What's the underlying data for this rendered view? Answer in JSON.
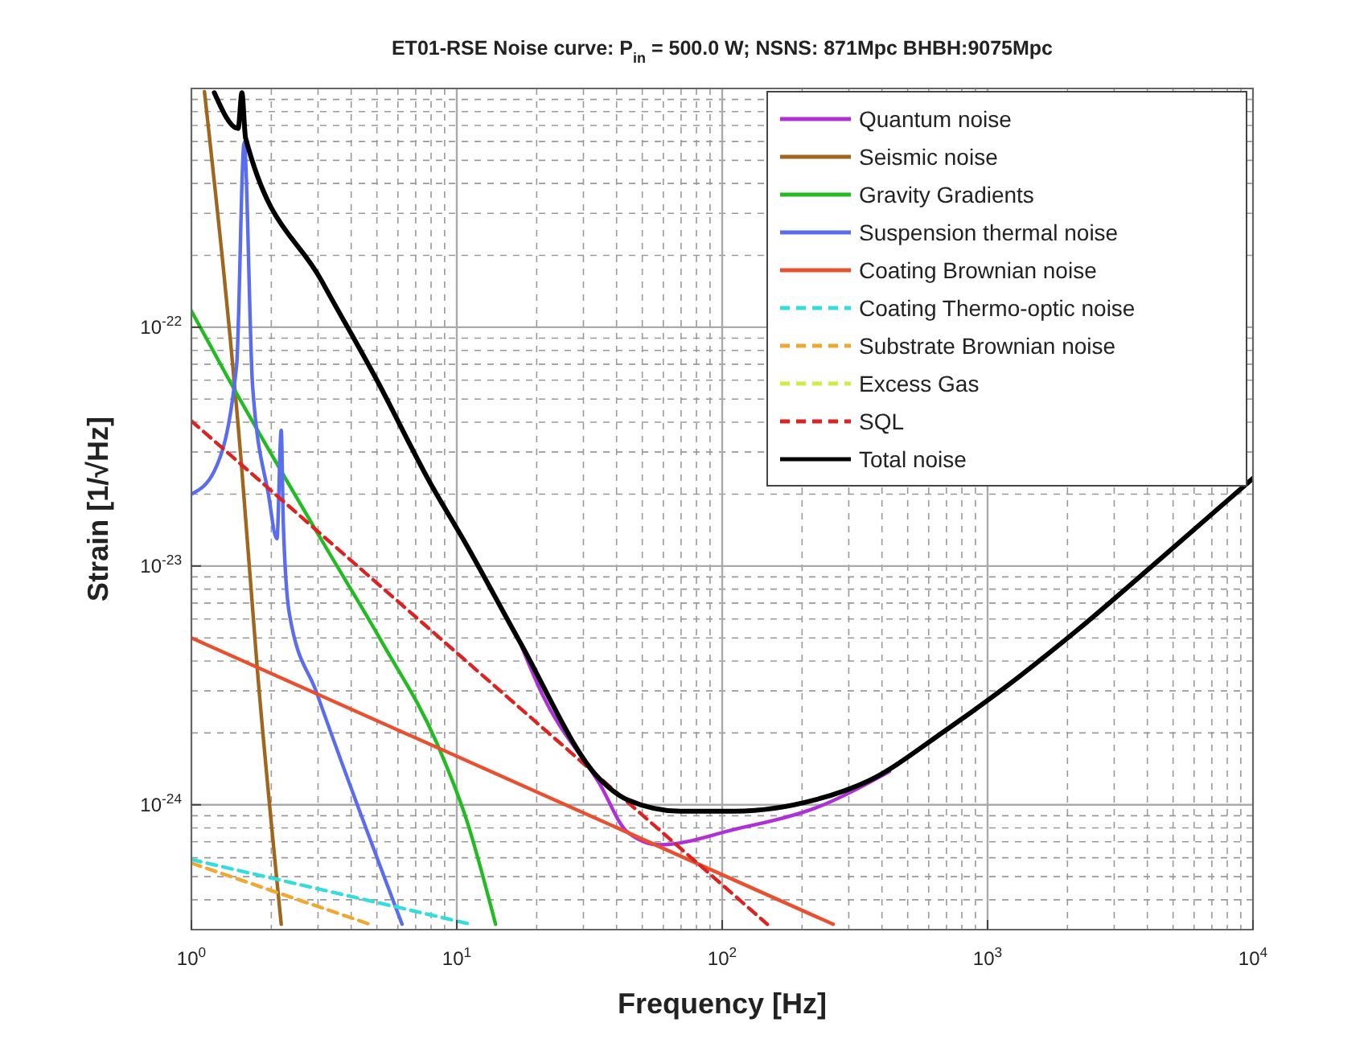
{
  "chart_data": {
    "type": "line",
    "title": "ET01-RSE Noise curve: P$_{in}$ = 500.0 W; NSNS: 871Mpc BHBH:9075Mpc",
    "xlabel": "Frequency [Hz]",
    "ylabel": "Strain [1/√Hz]",
    "log": "xy",
    "grid": true,
    "legend": "top right",
    "xlim": [
      1,
      10000
    ],
    "ylim": [
      3e-25,
      1e-21
    ],
    "xticks": [
      {
        "value": 1,
        "label": "10$^{0}$"
      },
      {
        "value": 10,
        "label": "10$^{1}$"
      },
      {
        "value": 100,
        "label": "10$^{2}$"
      },
      {
        "value": 1000,
        "label": "10$^{3}$"
      },
      {
        "value": 10000,
        "label": "10$^{4}$"
      }
    ],
    "yticks": [
      {
        "value": 1e-24,
        "label": "10$^{-24}$"
      },
      {
        "value": 1e-23,
        "label": "10$^{-23}$"
      },
      {
        "value": 1e-22,
        "label": "10$^{-22}$"
      }
    ],
    "series": [
      {
        "name": "Quantum noise",
        "color": "#b030d8",
        "line_style": "solid",
        "x": [
          17.2,
          20.9,
          34.6,
          43.9,
          58,
          112,
          225,
          427
        ],
        "values": [
          4.86e-24,
          2.93e-24,
          1.22e-24,
          7.7e-25,
          6.8e-25,
          7.9e-25,
          9.7e-25,
          1.38e-24
        ]
      },
      {
        "name": "Seismic noise",
        "color": "#a0661e",
        "line_style": "solid",
        "x": [
          1.12,
          1.54,
          1.77,
          2.18
        ],
        "values": [
          9.7e-22,
          2.75e-23,
          3.74e-24,
          3.16e-25
        ]
      },
      {
        "name": "Gravity Gradients",
        "color": "#22bb22",
        "line_style": "solid",
        "x": [
          1,
          1.4,
          3.1,
          5.19,
          8.45,
          10.9,
          14
        ],
        "values": [
          1.17e-22,
          5.9e-23,
          1.28e-23,
          4.86e-24,
          1.79e-24,
          8.6e-25,
          3.16e-25
        ]
      },
      {
        "name": "Suspension thermal noise",
        "color": "#5a6cf0",
        "line_style": "solid",
        "x": [
          1,
          1.22,
          1.48,
          1.58,
          1.7,
          1.95,
          2.1,
          2.18,
          2.22,
          2.34,
          2.97,
          6.22
        ],
        "values": [
          2e-23,
          2.5e-23,
          6.9e-23,
          5.9e-22,
          5.7e-23,
          2e-23,
          1.3e-23,
          3.7e-23,
          1.5e-23,
          6.3e-24,
          2.93e-24,
          3.16e-25
        ]
      },
      {
        "name": "Coating Brownian noise",
        "color": "#e8502f",
        "line_style": "solid",
        "x": [
          1,
          262
        ],
        "values": [
          5e-24,
          3.16e-25
        ]
      },
      {
        "name": "Coating Thermo-optic noise",
        "color": "#33dddd",
        "line_style": "dashed",
        "x": [
          1,
          11.3
        ],
        "values": [
          5.9e-25,
          3.16e-25
        ]
      },
      {
        "name": "Substrate Brownian noise",
        "color": "#f0a830",
        "line_style": "dashed",
        "x": [
          1,
          4.7
        ],
        "values": [
          5.7e-25,
          3.16e-25
        ]
      },
      {
        "name": "Excess Gas",
        "color": "#ccee44",
        "line_style": "dashed"
      },
      {
        "name": "SQL",
        "color": "#dd2222",
        "line_style": "dashed",
        "x": [
          1,
          148
        ],
        "values": [
          4.05e-23,
          3.16e-25
        ]
      },
      {
        "name": "Total noise",
        "color": "#000000",
        "line_style": "solid",
        "x": [
          1.22,
          1.5,
          1.55,
          1.6,
          3.1,
          5,
          7.9,
          10.9,
          17.2,
          34.6,
          43.9,
          69.5,
          112,
          225,
          356,
          686,
          1087,
          2183,
          4387,
          10000
        ],
        "values": [
          9.6e-22,
          6.8e-22,
          9.6e-22,
          6.2e-22,
          1.56e-22,
          6e-23,
          2.25e-23,
          1.22e-23,
          4.86e-24,
          1.28e-24,
          1.05e-24,
          9.4e-25,
          9.4e-25,
          1.05e-24,
          1.26e-24,
          2.03e-24,
          2.93e-24,
          5.4e-24,
          1.05e-23,
          2.33e-23
        ]
      }
    ]
  }
}
